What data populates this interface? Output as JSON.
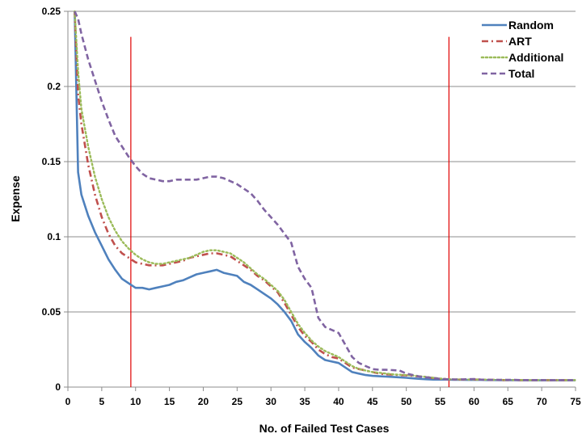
{
  "chart_data": {
    "type": "line",
    "xlabel": "No. of Failed Test Cases",
    "ylabel": "Expense",
    "xlim": [
      0,
      75
    ],
    "ylim": [
      0,
      0.25
    ],
    "x_ticks": [
      "0",
      "5",
      "10",
      "15",
      "20",
      "25",
      "30",
      "35",
      "40",
      "45",
      "50",
      "55",
      "60",
      "65",
      "70",
      "75"
    ],
    "y_ticks": [
      "0",
      "0.05",
      "0.1",
      "0.15",
      "0.2",
      "0.25"
    ],
    "grid": "horizontal",
    "legend_position": "top-right",
    "reference_lines_x": [
      9.3,
      56.3
    ],
    "reference_line_color": "#e00000",
    "series": [
      {
        "name": "Random",
        "color": "#4f81bd",
        "dash": "solid",
        "x": [
          1,
          1.5,
          2,
          3,
          4,
          5,
          6,
          7,
          8,
          9,
          10,
          11,
          12,
          13,
          14,
          15,
          16,
          17,
          18,
          19,
          20,
          21,
          22,
          23,
          24,
          25,
          26,
          27,
          28,
          29,
          30,
          31,
          32,
          33,
          34,
          35,
          36,
          37,
          38,
          39,
          40,
          41,
          42,
          43,
          44,
          45,
          46,
          47,
          48,
          49,
          50,
          51,
          52,
          53,
          54,
          55,
          56,
          57,
          58,
          59,
          60,
          61,
          62,
          63,
          64,
          65,
          66,
          67,
          68,
          69,
          70,
          71,
          72,
          73,
          74,
          75
        ],
        "y": [
          0.25,
          0.143,
          0.128,
          0.114,
          0.103,
          0.094,
          0.085,
          0.078,
          0.072,
          0.069,
          0.066,
          0.066,
          0.065,
          0.066,
          0.067,
          0.068,
          0.07,
          0.071,
          0.073,
          0.075,
          0.076,
          0.077,
          0.078,
          0.076,
          0.075,
          0.074,
          0.07,
          0.068,
          0.065,
          0.062,
          0.059,
          0.055,
          0.05,
          0.044,
          0.035,
          0.03,
          0.026,
          0.021,
          0.018,
          0.017,
          0.016,
          0.013,
          0.01,
          0.009,
          0.008,
          0.0075,
          0.0072,
          0.007,
          0.0068,
          0.0065,
          0.0062,
          0.0058,
          0.0055,
          0.0052,
          0.005,
          0.005,
          0.005,
          0.0049,
          0.0049,
          0.0048,
          0.0048,
          0.0048,
          0.0047,
          0.0047,
          0.0046,
          0.0046,
          0.0046,
          0.0045,
          0.0045,
          0.0045,
          0.0045,
          0.0045,
          0.0045,
          0.0045,
          0.0045,
          0.0045
        ]
      },
      {
        "name": "ART",
        "color": "#c0504d",
        "dash": "dashdot",
        "x": [
          1,
          1.5,
          2,
          3,
          4,
          5,
          6,
          7,
          8,
          9,
          10,
          11,
          12,
          13,
          14,
          15,
          16,
          17,
          18,
          19,
          20,
          21,
          22,
          23,
          24,
          25,
          26,
          27,
          28,
          29,
          30,
          31,
          32,
          33,
          34,
          35,
          36,
          37,
          38,
          39,
          40,
          41,
          42,
          43,
          44,
          45,
          46,
          47,
          48,
          49,
          50,
          51,
          52,
          53,
          54,
          55,
          56,
          57,
          58,
          59,
          60,
          61,
          62,
          63,
          64,
          65,
          66,
          67,
          68,
          69,
          70,
          71,
          72,
          73,
          74,
          75
        ],
        "y": [
          0.25,
          0.195,
          0.175,
          0.148,
          0.128,
          0.113,
          0.102,
          0.094,
          0.089,
          0.086,
          0.083,
          0.082,
          0.081,
          0.081,
          0.081,
          0.082,
          0.083,
          0.084,
          0.086,
          0.087,
          0.088,
          0.089,
          0.089,
          0.088,
          0.087,
          0.084,
          0.081,
          0.078,
          0.074,
          0.071,
          0.067,
          0.063,
          0.056,
          0.048,
          0.04,
          0.034,
          0.03,
          0.025,
          0.022,
          0.02,
          0.019,
          0.016,
          0.013,
          0.012,
          0.011,
          0.01,
          0.009,
          0.0085,
          0.0083,
          0.008,
          0.0078,
          0.0075,
          0.007,
          0.0065,
          0.006,
          0.0055,
          0.0052,
          0.005,
          0.005,
          0.005,
          0.005,
          0.005,
          0.0048,
          0.0048,
          0.0047,
          0.0047,
          0.0047,
          0.0046,
          0.0046,
          0.0046,
          0.0046,
          0.0046,
          0.0046,
          0.0046,
          0.0046,
          0.0046
        ]
      },
      {
        "name": "Additional",
        "color": "#9bbb59",
        "dash": "dotted",
        "x": [
          1,
          1.5,
          2,
          3,
          4,
          5,
          6,
          7,
          8,
          9,
          10,
          11,
          12,
          13,
          14,
          15,
          16,
          17,
          18,
          19,
          20,
          21,
          22,
          23,
          24,
          25,
          26,
          27,
          28,
          29,
          30,
          31,
          32,
          33,
          34,
          35,
          36,
          37,
          38,
          39,
          40,
          41,
          42,
          43,
          44,
          45,
          46,
          47,
          48,
          49,
          50,
          51,
          52,
          53,
          54,
          55,
          56,
          57,
          58,
          59,
          60,
          61,
          62,
          63,
          64,
          65,
          66,
          67,
          68,
          69,
          70,
          71,
          72,
          73,
          74,
          75
        ],
        "y": [
          0.25,
          0.21,
          0.185,
          0.16,
          0.14,
          0.125,
          0.113,
          0.104,
          0.097,
          0.092,
          0.088,
          0.085,
          0.083,
          0.082,
          0.082,
          0.083,
          0.084,
          0.085,
          0.086,
          0.088,
          0.09,
          0.091,
          0.091,
          0.09,
          0.089,
          0.086,
          0.083,
          0.079,
          0.075,
          0.072,
          0.068,
          0.064,
          0.058,
          0.05,
          0.042,
          0.036,
          0.031,
          0.027,
          0.024,
          0.022,
          0.02,
          0.017,
          0.014,
          0.012,
          0.011,
          0.01,
          0.0095,
          0.009,
          0.0085,
          0.0082,
          0.008,
          0.0077,
          0.0072,
          0.0068,
          0.0062,
          0.0057,
          0.0053,
          0.0051,
          0.0051,
          0.005,
          0.005,
          0.005,
          0.0049,
          0.0048,
          0.0048,
          0.0047,
          0.0047,
          0.0047,
          0.0046,
          0.0046,
          0.0046,
          0.0046,
          0.0046,
          0.0046,
          0.0046,
          0.0046
        ]
      },
      {
        "name": "Total",
        "color": "#8064a2",
        "dash": "dashed",
        "x": [
          1,
          1.5,
          2,
          3,
          4,
          5,
          6,
          7,
          8,
          9,
          10,
          11,
          12,
          13,
          14,
          15,
          16,
          17,
          18,
          19,
          20,
          21,
          22,
          23,
          24,
          25,
          26,
          27,
          28,
          29,
          30,
          31,
          32,
          33,
          34,
          35,
          36,
          37,
          38,
          39,
          40,
          41,
          42,
          43,
          44,
          45,
          46,
          47,
          48,
          49,
          50,
          51,
          52,
          53,
          54,
          55,
          56,
          57,
          58,
          59,
          60,
          61,
          62,
          63,
          64,
          65,
          66,
          67,
          68,
          69,
          70,
          71,
          72,
          73,
          74,
          75
        ],
        "y": [
          0.25,
          0.245,
          0.235,
          0.218,
          0.204,
          0.19,
          0.178,
          0.167,
          0.16,
          0.153,
          0.147,
          0.142,
          0.139,
          0.138,
          0.137,
          0.137,
          0.138,
          0.138,
          0.138,
          0.138,
          0.139,
          0.14,
          0.14,
          0.139,
          0.137,
          0.135,
          0.132,
          0.129,
          0.124,
          0.118,
          0.113,
          0.108,
          0.102,
          0.096,
          0.08,
          0.072,
          0.066,
          0.046,
          0.04,
          0.038,
          0.036,
          0.028,
          0.02,
          0.016,
          0.014,
          0.012,
          0.0115,
          0.0115,
          0.0113,
          0.011,
          0.009,
          0.008,
          0.007,
          0.0065,
          0.006,
          0.0055,
          0.0052,
          0.0051,
          0.0051,
          0.0052,
          0.0053,
          0.005,
          0.0049,
          0.0048,
          0.0048,
          0.0048,
          0.0048,
          0.0047,
          0.0047,
          0.0047,
          0.0047,
          0.0046,
          0.0046,
          0.0046,
          0.0046,
          0.0046
        ]
      }
    ]
  }
}
